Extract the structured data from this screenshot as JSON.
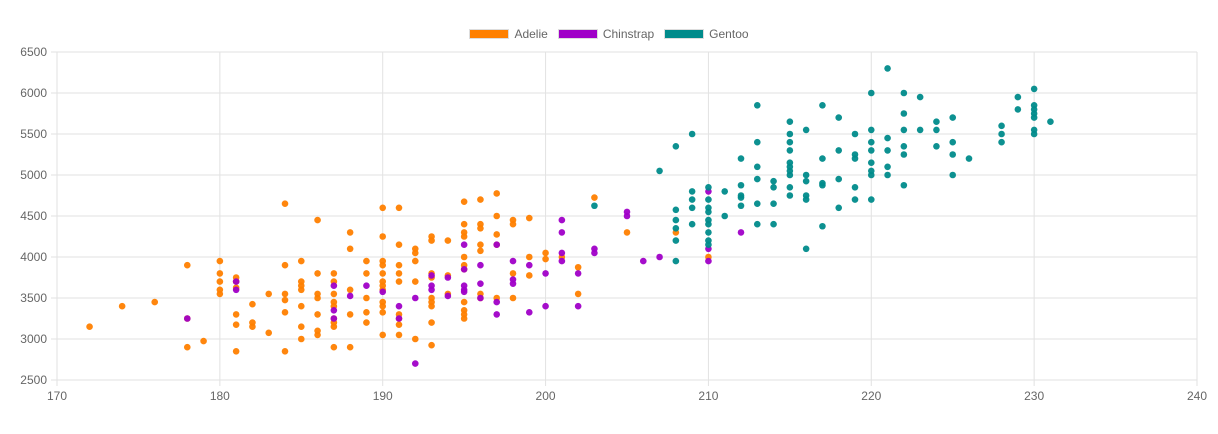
{
  "chart_data": {
    "type": "scatter",
    "title": "",
    "xlabel": "",
    "ylabel": "",
    "xlim": [
      170,
      240
    ],
    "ylim": [
      2500,
      6500
    ],
    "x_ticks": [
      170,
      180,
      190,
      200,
      210,
      220,
      230,
      240
    ],
    "y_ticks": [
      2500,
      3000,
      3500,
      4000,
      4500,
      5000,
      5500,
      6000,
      6500
    ],
    "grid": true,
    "legend_position": "top",
    "series": [
      {
        "name": "Adelie",
        "color": "#ff8000",
        "points": [
          [
            172,
            3150
          ],
          [
            174,
            3400
          ],
          [
            176,
            3450
          ],
          [
            178,
            3900
          ],
          [
            178,
            3250
          ],
          [
            178,
            2900
          ],
          [
            179,
            2975
          ],
          [
            180,
            3950
          ],
          [
            180,
            3800
          ],
          [
            180,
            3700
          ],
          [
            180,
            3600
          ],
          [
            180,
            3550
          ],
          [
            181,
            3750
          ],
          [
            181,
            3700
          ],
          [
            181,
            3625
          ],
          [
            181,
            3300
          ],
          [
            181,
            3175
          ],
          [
            181,
            2850
          ],
          [
            182,
            3425
          ],
          [
            182,
            3200
          ],
          [
            182,
            3150
          ],
          [
            183,
            3550
          ],
          [
            183,
            3075
          ],
          [
            184,
            4650
          ],
          [
            184,
            3900
          ],
          [
            184,
            3550
          ],
          [
            184,
            3475
          ],
          [
            184,
            3325
          ],
          [
            184,
            2850
          ],
          [
            185,
            3950
          ],
          [
            185,
            3700
          ],
          [
            185,
            3650
          ],
          [
            185,
            3600
          ],
          [
            185,
            3400
          ],
          [
            185,
            3150
          ],
          [
            185,
            3000
          ],
          [
            186,
            4450
          ],
          [
            186,
            3800
          ],
          [
            186,
            3550
          ],
          [
            186,
            3500
          ],
          [
            186,
            3300
          ],
          [
            186,
            3100
          ],
          [
            186,
            3050
          ],
          [
            187,
            3800
          ],
          [
            187,
            3700
          ],
          [
            187,
            3550
          ],
          [
            187,
            3450
          ],
          [
            187,
            3400
          ],
          [
            187,
            3250
          ],
          [
            187,
            3200
          ],
          [
            187,
            3150
          ],
          [
            187,
            2900
          ],
          [
            188,
            4300
          ],
          [
            188,
            4100
          ],
          [
            188,
            3600
          ],
          [
            188,
            3300
          ],
          [
            188,
            2900
          ],
          [
            189,
            3950
          ],
          [
            189,
            3800
          ],
          [
            189,
            3500
          ],
          [
            189,
            3325
          ],
          [
            189,
            3200
          ],
          [
            190,
            4600
          ],
          [
            190,
            4250
          ],
          [
            190,
            3950
          ],
          [
            190,
            3900
          ],
          [
            190,
            3800
          ],
          [
            190,
            3700
          ],
          [
            190,
            3650
          ],
          [
            190,
            3600
          ],
          [
            190,
            3450
          ],
          [
            190,
            3400
          ],
          [
            190,
            3325
          ],
          [
            190,
            3050
          ],
          [
            191,
            4600
          ],
          [
            191,
            4150
          ],
          [
            191,
            3900
          ],
          [
            191,
            3800
          ],
          [
            191,
            3700
          ],
          [
            191,
            3300
          ],
          [
            191,
            3250
          ],
          [
            191,
            3175
          ],
          [
            191,
            3050
          ],
          [
            192,
            4100
          ],
          [
            192,
            4050
          ],
          [
            192,
            3950
          ],
          [
            192,
            3700
          ],
          [
            192,
            3000
          ],
          [
            193,
            4250
          ],
          [
            193,
            4200
          ],
          [
            193,
            3800
          ],
          [
            193,
            3750
          ],
          [
            193,
            3500
          ],
          [
            193,
            3450
          ],
          [
            193,
            3400
          ],
          [
            193,
            3200
          ],
          [
            193,
            2925
          ],
          [
            194,
            4200
          ],
          [
            194,
            3775
          ],
          [
            194,
            3550
          ],
          [
            195,
            4675
          ],
          [
            195,
            4400
          ],
          [
            195,
            4300
          ],
          [
            195,
            4250
          ],
          [
            195,
            4000
          ],
          [
            195,
            3900
          ],
          [
            195,
            3850
          ],
          [
            195,
            3450
          ],
          [
            195,
            3350
          ],
          [
            195,
            3300
          ],
          [
            195,
            3250
          ],
          [
            196,
            4700
          ],
          [
            196,
            4400
          ],
          [
            196,
            4350
          ],
          [
            196,
            4150
          ],
          [
            196,
            4075
          ],
          [
            196,
            3550
          ],
          [
            196,
            3500
          ],
          [
            197,
            4775
          ],
          [
            197,
            4500
          ],
          [
            197,
            4275
          ],
          [
            197,
            4150
          ],
          [
            197,
            3500
          ],
          [
            198,
            4450
          ],
          [
            198,
            4400
          ],
          [
            198,
            3800
          ],
          [
            198,
            3500
          ],
          [
            199,
            4475
          ],
          [
            199,
            4000
          ],
          [
            199,
            3775
          ],
          [
            200,
            4050
          ],
          [
            200,
            3975
          ],
          [
            201,
            4000
          ],
          [
            202,
            3875
          ],
          [
            202,
            3550
          ],
          [
            203,
            4725
          ],
          [
            205,
            4300
          ],
          [
            208,
            4300
          ],
          [
            210,
            4000
          ]
        ]
      },
      {
        "name": "Chinstrap",
        "color": "#a000c8",
        "points": [
          [
            178,
            3250
          ],
          [
            181,
            3700
          ],
          [
            181,
            3600
          ],
          [
            187,
            3650
          ],
          [
            187,
            3350
          ],
          [
            187,
            3250
          ],
          [
            188,
            3525
          ],
          [
            189,
            3650
          ],
          [
            190,
            3575
          ],
          [
            191,
            3400
          ],
          [
            191,
            3250
          ],
          [
            192,
            3500
          ],
          [
            192,
            2700
          ],
          [
            193,
            3775
          ],
          [
            193,
            3650
          ],
          [
            193,
            3600
          ],
          [
            194,
            3750
          ],
          [
            194,
            3525
          ],
          [
            195,
            4150
          ],
          [
            195,
            3850
          ],
          [
            195,
            3650
          ],
          [
            195,
            3600
          ],
          [
            195,
            3575
          ],
          [
            196,
            3900
          ],
          [
            196,
            3675
          ],
          [
            196,
            3500
          ],
          [
            197,
            4150
          ],
          [
            197,
            3450
          ],
          [
            197,
            3300
          ],
          [
            198,
            3950
          ],
          [
            198,
            3725
          ],
          [
            198,
            3675
          ],
          [
            199,
            3900
          ],
          [
            199,
            3325
          ],
          [
            200,
            3800
          ],
          [
            200,
            3400
          ],
          [
            201,
            4450
          ],
          [
            201,
            4300
          ],
          [
            201,
            4050
          ],
          [
            201,
            3950
          ],
          [
            202,
            3800
          ],
          [
            202,
            3400
          ],
          [
            203,
            4100
          ],
          [
            203,
            4050
          ],
          [
            205,
            4550
          ],
          [
            205,
            4500
          ],
          [
            206,
            3950
          ],
          [
            207,
            4000
          ],
          [
            210,
            4800
          ],
          [
            210,
            4100
          ],
          [
            210,
            3950
          ],
          [
            212,
            4300
          ]
        ]
      },
      {
        "name": "Gentoo",
        "color": "#008b8b",
        "points": [
          [
            203,
            4625
          ],
          [
            207,
            5050
          ],
          [
            208,
            5350
          ],
          [
            208,
            4575
          ],
          [
            208,
            4450
          ],
          [
            208,
            4350
          ],
          [
            208,
            4200
          ],
          [
            208,
            3950
          ],
          [
            209,
            5500
          ],
          [
            209,
            4800
          ],
          [
            209,
            4700
          ],
          [
            209,
            4600
          ],
          [
            209,
            4400
          ],
          [
            210,
            4850
          ],
          [
            210,
            4700
          ],
          [
            210,
            4600
          ],
          [
            210,
            4550
          ],
          [
            210,
            4450
          ],
          [
            210,
            4400
          ],
          [
            210,
            4300
          ],
          [
            210,
            4200
          ],
          [
            210,
            4150
          ],
          [
            211,
            4800
          ],
          [
            211,
            4500
          ],
          [
            212,
            5200
          ],
          [
            212,
            4875
          ],
          [
            212,
            4750
          ],
          [
            212,
            4725
          ],
          [
            212,
            4625
          ],
          [
            213,
            5850
          ],
          [
            213,
            5400
          ],
          [
            213,
            5100
          ],
          [
            213,
            4950
          ],
          [
            213,
            4650
          ],
          [
            213,
            4400
          ],
          [
            214,
            4925
          ],
          [
            214,
            4850
          ],
          [
            214,
            4650
          ],
          [
            214,
            4400
          ],
          [
            215,
            5650
          ],
          [
            215,
            5500
          ],
          [
            215,
            5400
          ],
          [
            215,
            5300
          ],
          [
            215,
            5150
          ],
          [
            215,
            5100
          ],
          [
            215,
            5050
          ],
          [
            215,
            5000
          ],
          [
            215,
            4850
          ],
          [
            215,
            4750
          ],
          [
            216,
            5550
          ],
          [
            216,
            5000
          ],
          [
            216,
            4925
          ],
          [
            216,
            4750
          ],
          [
            216,
            4700
          ],
          [
            216,
            4100
          ],
          [
            217,
            5850
          ],
          [
            217,
            5200
          ],
          [
            217,
            4900
          ],
          [
            217,
            4875
          ],
          [
            217,
            4375
          ],
          [
            218,
            5700
          ],
          [
            218,
            5300
          ],
          [
            218,
            4950
          ],
          [
            218,
            4600
          ],
          [
            219,
            5500
          ],
          [
            219,
            5250
          ],
          [
            219,
            5200
          ],
          [
            219,
            4850
          ],
          [
            219,
            4700
          ],
          [
            220,
            6000
          ],
          [
            220,
            5550
          ],
          [
            220,
            5400
          ],
          [
            220,
            5300
          ],
          [
            220,
            5150
          ],
          [
            220,
            5050
          ],
          [
            220,
            5000
          ],
          [
            220,
            4700
          ],
          [
            221,
            6300
          ],
          [
            221,
            5450
          ],
          [
            221,
            5300
          ],
          [
            221,
            5100
          ],
          [
            221,
            5000
          ],
          [
            222,
            6000
          ],
          [
            222,
            5750
          ],
          [
            222,
            5550
          ],
          [
            222,
            5350
          ],
          [
            222,
            5250
          ],
          [
            222,
            4875
          ],
          [
            223,
            5950
          ],
          [
            223,
            5550
          ],
          [
            224,
            5650
          ],
          [
            224,
            5550
          ],
          [
            224,
            5350
          ],
          [
            225,
            5700
          ],
          [
            225,
            5400
          ],
          [
            225,
            5250
          ],
          [
            225,
            5000
          ],
          [
            226,
            5200
          ],
          [
            228,
            5600
          ],
          [
            228,
            5500
          ],
          [
            228,
            5400
          ],
          [
            229,
            5950
          ],
          [
            229,
            5800
          ],
          [
            230,
            6050
          ],
          [
            230,
            5850
          ],
          [
            230,
            5800
          ],
          [
            230,
            5750
          ],
          [
            230,
            5700
          ],
          [
            230,
            5550
          ],
          [
            230,
            5500
          ],
          [
            231,
            5650
          ]
        ]
      }
    ]
  }
}
